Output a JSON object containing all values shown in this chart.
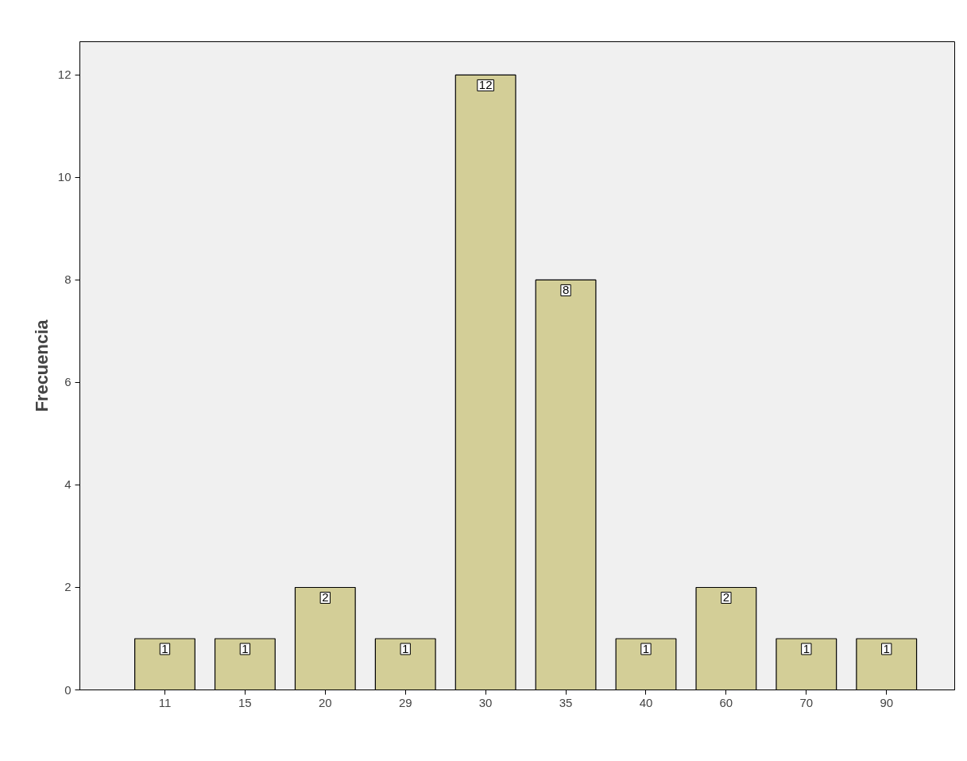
{
  "chart_data": {
    "type": "bar",
    "ylabel": "Frecuencia",
    "categories": [
      "11",
      "15",
      "20",
      "29",
      "30",
      "35",
      "40",
      "60",
      "70",
      "90"
    ],
    "values": [
      1,
      1,
      2,
      1,
      12,
      8,
      1,
      2,
      1,
      1
    ],
    "color": "#d3ce97",
    "ylim": [
      0,
      12.65
    ],
    "yticks": [
      0,
      2,
      4,
      6,
      8,
      10,
      12
    ],
    "data_labels": true,
    "grid": false
  }
}
